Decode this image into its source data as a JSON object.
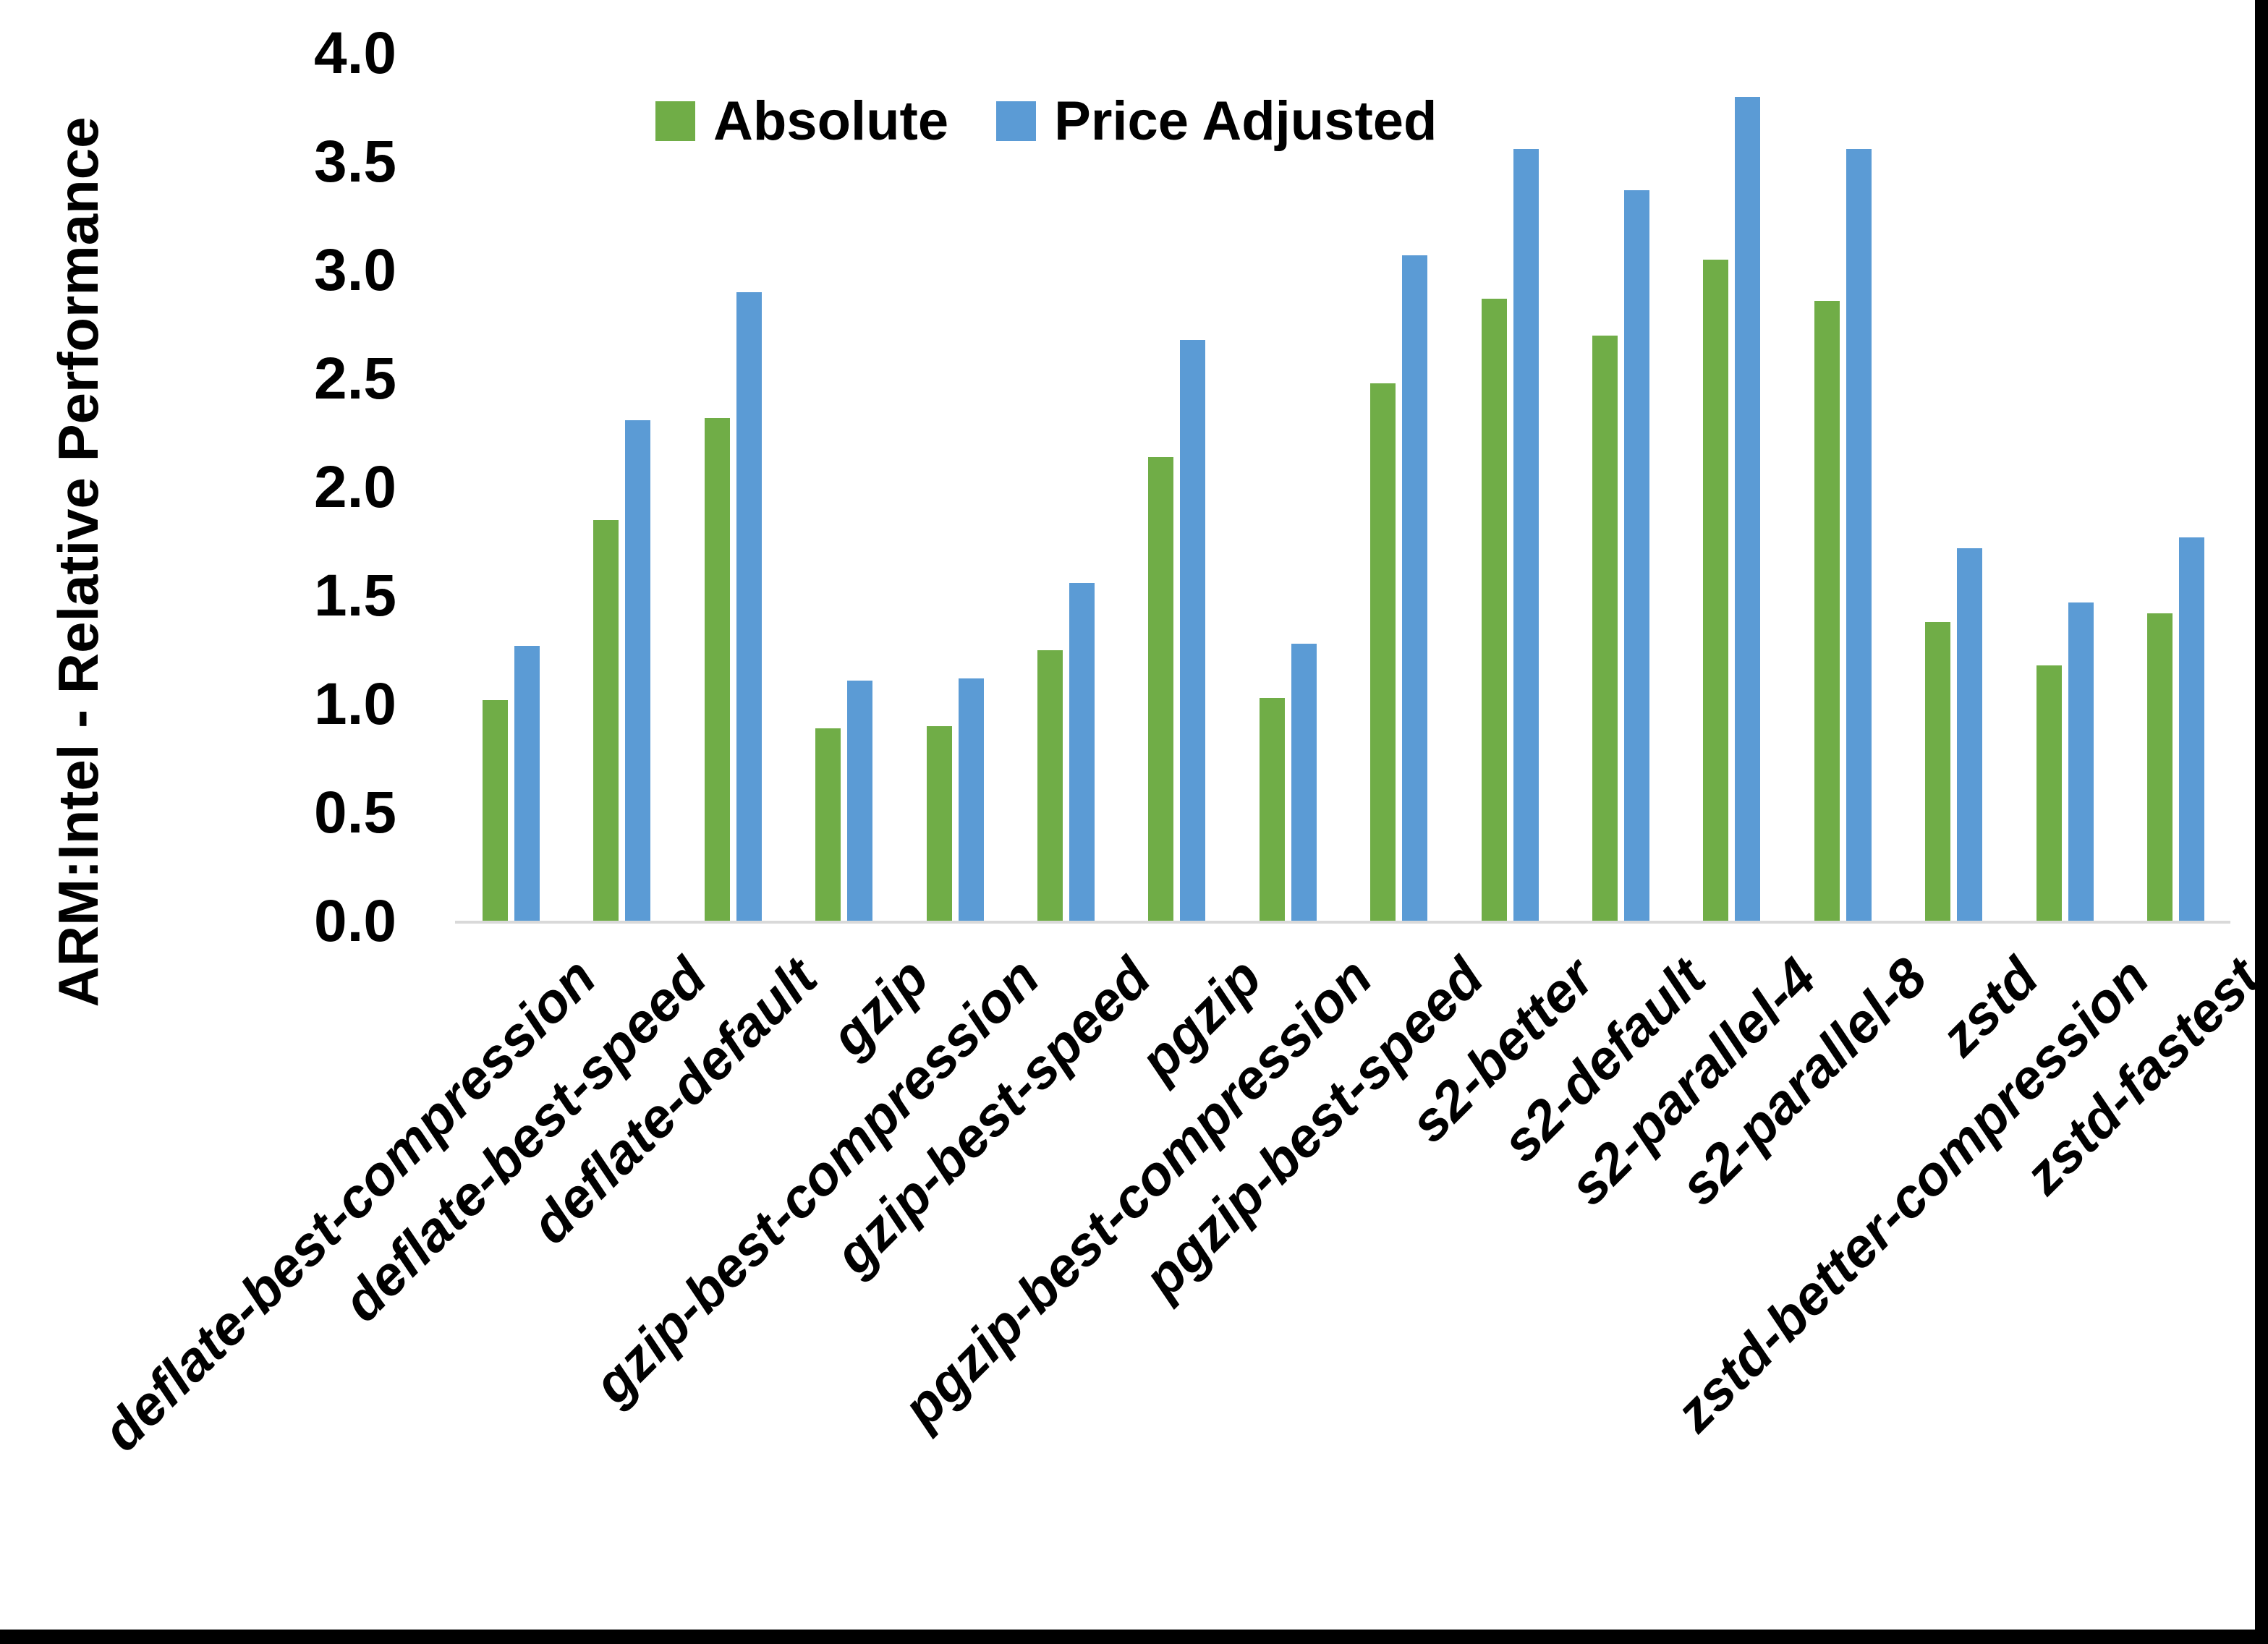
{
  "chart_data": {
    "type": "bar",
    "title": "",
    "xlabel": "",
    "ylabel": "ARM:Intel - Relative Performance",
    "ylim": [
      0.0,
      4.0
    ],
    "ytick_step": 0.5,
    "ytick_labels": [
      "4.0",
      "3.5",
      "3.0",
      "2.5",
      "2.0",
      "1.5",
      "1.0",
      "0.5",
      "0.0"
    ],
    "grid": false,
    "legend_position": "top-center",
    "categories": [
      "deflate-best-compression",
      "deflate-best-speed",
      "deflate-default",
      "gzip",
      "gzip-best-compression",
      "gzip-best-speed",
      "pgzip",
      "pgzip-best-compression",
      "pgzip-best-speed",
      "s2-better",
      "s2-default",
      "s2-parallel-4",
      "s2-parallel-8",
      "zstd",
      "zstd-better-compression",
      "zstd-fastest"
    ],
    "series": [
      {
        "name": "Absolute",
        "color": "#70AD47",
        "values": [
          1.02,
          1.85,
          2.32,
          0.89,
          0.9,
          1.25,
          2.14,
          1.03,
          2.48,
          2.87,
          2.7,
          3.05,
          2.86,
          1.38,
          1.18,
          1.42
        ]
      },
      {
        "name": "Price Adjusted",
        "color": "#5B9BD5",
        "values": [
          1.27,
          2.31,
          2.9,
          1.11,
          1.12,
          1.56,
          2.68,
          1.28,
          3.07,
          3.56,
          3.37,
          3.8,
          3.56,
          1.72,
          1.47,
          1.77
        ]
      }
    ]
  },
  "colors": {
    "background": "#FFFFFF",
    "axis_line": "#D9D9D9",
    "text": "#000000",
    "frame": "#000000"
  }
}
